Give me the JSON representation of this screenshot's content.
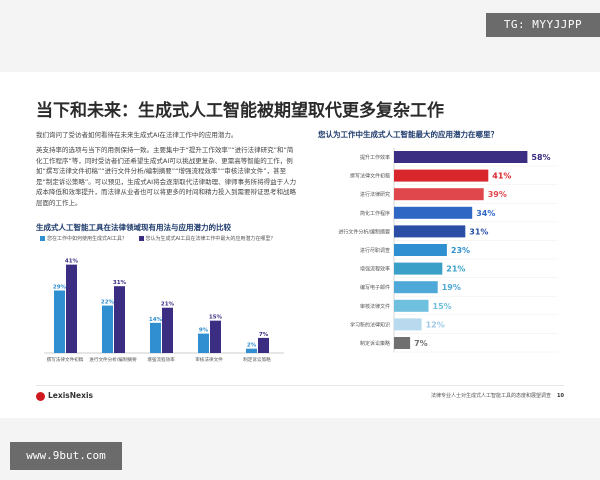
{
  "watermark_top": "TG: MYYJJPP",
  "watermark_bottom": "www.9but.com",
  "page_title": "当下和未来：生成式人工智能被期望取代更多复杂工作",
  "intro": "我们询问了受访者如何看待在未来生成式AI在法律工作中的应用潜力。",
  "body": "英支持率的选项与当下的用例保持一致。主要集中于“提升工作效率”“进行法律研究”和“简化工作程序”等，同时受访者们还希望生成式AI可以挑战更复杂、更需高等智能的工作，例如“撰写法律文件初稿”“进行文件分析/编制摘要”“增强流程效率”“审核法律文件”，甚至是“制定诉讼策略”。可以预见，生成式AI将会逐渐取代法律助理、律师事务所将得益于人力成本降低和效率提升，而法律从业者也可以将更多的时间和精力投入到需要辩证思考和战略层面的工作上。",
  "colors": {
    "light": "#2f8fd0",
    "dark": "#3b2d82",
    "title": "#1d3a6b"
  },
  "left_legend": [
    "您在工作中如何使用生成式AI工具？",
    "您认为生成式AI工具在法律工作中最大的应用潜力在哪里？"
  ],
  "chart_data": [
    {
      "type": "bar",
      "title": "生成式人工智能工具在法律领域现有用法与应用潜力的比较",
      "categories": [
        "撰写法律文件初稿",
        "进行文件分析/编制摘要",
        "增强流程效率",
        "审核法律文件",
        "制定诉讼策略"
      ],
      "series": [
        {
          "name": "您在工作中如何使用生成式AI工具？",
          "values": [
            29,
            22,
            14,
            9,
            2
          ]
        },
        {
          "name": "您认为生成式AI工具在法律工作中最大的应用潜力在哪里？",
          "values": [
            41,
            31,
            21,
            15,
            7
          ]
        }
      ],
      "ylim": [
        0,
        45
      ],
      "xlabel": "",
      "ylabel": ""
    },
    {
      "type": "bar",
      "orientation": "horizontal",
      "title": "您认为工作中生成式人工智能最大的应用潜力在哪里？",
      "categories": [
        "提升工作效率",
        "撰写法律文件初稿",
        "进行法律研究",
        "简化工作程序",
        "进行文件分析/编制摘要",
        "进行尽职调查",
        "增强流程效率",
        "编写电子邮件",
        "审核法律文件",
        "学习新的法律知识",
        "制定诉讼策略"
      ],
      "values": [
        58,
        41,
        39,
        34,
        31,
        23,
        21,
        19,
        15,
        12,
        7
      ],
      "labels": [
        "58%",
        "41%",
        "39%",
        "34%",
        "31%",
        "23%",
        "21%",
        "19%",
        "15%",
        "12%",
        "7%"
      ],
      "bar_colors": [
        "#3b2d82",
        "#d9262d",
        "#e0474d",
        "#2f68c4",
        "#2a4ea6",
        "#2f8fd0",
        "#3aa0c8",
        "#4fa9d8",
        "#6fc0df",
        "#b9d9ee",
        "#707070"
      ],
      "label_colors": [
        "#3b2d82",
        "#d9262d",
        "#e0474d",
        "#2f68c4",
        "#2a4ea6",
        "#2f8fd0",
        "#3aa0c8",
        "#4fa9d8",
        "#6fc0df",
        "#9cc8e6",
        "#707070"
      ],
      "xlim": [
        0,
        60
      ]
    }
  ],
  "logo": "LexisNexis",
  "footer": "法律专业人士对生成式人工智能工具的态度和展望调查",
  "page_number": "10"
}
